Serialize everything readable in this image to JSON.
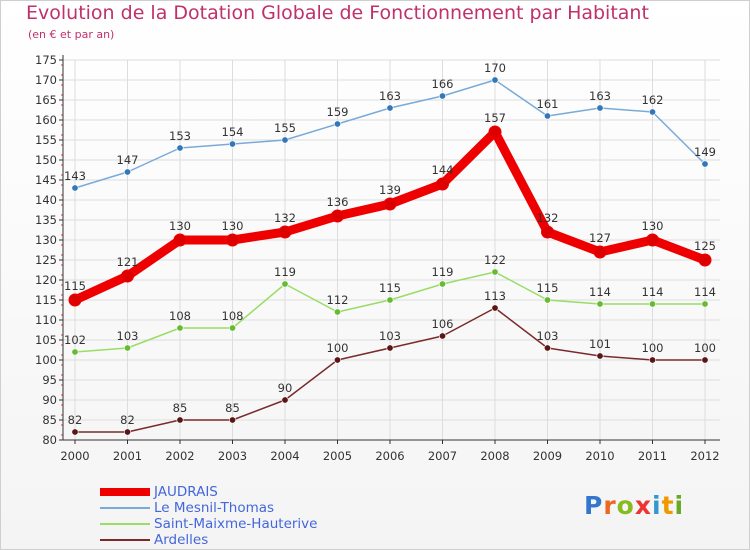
{
  "title": "Evolution de la Dotation Globale de Fonctionnement par Habitant",
  "subtitle": "(en € et par an)",
  "logo_letters": [
    "P",
    "r",
    "o",
    "x",
    "i",
    "t",
    "i"
  ],
  "colors": {
    "title": "#c0306a",
    "axis": "#333333",
    "grid": "#dddddd",
    "legend_text": "#4466dd",
    "logo": [
      "#3377cc",
      "#ee6622",
      "#88bb22",
      "#ee3333",
      "#3399cc",
      "#ee9900",
      "#66aa22"
    ]
  },
  "chart_data": {
    "type": "line",
    "title": "Evolution de la Dotation Globale de Fonctionnement par Habitant",
    "subtitle": "(en € et par an)",
    "categories": [
      "2000",
      "2001",
      "2002",
      "2003",
      "2004",
      "2005",
      "2006",
      "2007",
      "2008",
      "2009",
      "2010",
      "2011",
      "2012"
    ],
    "ylim": [
      80,
      175
    ],
    "yticks": [
      80,
      85,
      90,
      95,
      100,
      105,
      110,
      115,
      120,
      125,
      130,
      135,
      140,
      145,
      150,
      155,
      160,
      165,
      170,
      175
    ],
    "grid": true,
    "legend_position": "bottom-left",
    "series": [
      {
        "name": "JAUDRAIS",
        "color": "#ee0000",
        "marker": "#dd0000",
        "thick": true,
        "values": [
          115,
          121,
          130,
          130,
          132,
          136,
          139,
          144,
          157,
          132,
          127,
          130,
          125
        ]
      },
      {
        "name": "Le Mesnil-Thomas",
        "color": "#7aaad8",
        "marker": "#3377bb",
        "thick": false,
        "values": [
          143,
          147,
          153,
          154,
          155,
          159,
          163,
          166,
          170,
          161,
          163,
          162,
          149
        ]
      },
      {
        "name": "Saint-Maixme-Hauterive",
        "color": "#99dd66",
        "marker": "#66bb33",
        "thick": false,
        "values": [
          102,
          103,
          108,
          108,
          119,
          112,
          115,
          119,
          122,
          115,
          114,
          114,
          114
        ]
      },
      {
        "name": "Ardelles",
        "color": "#7a2a2a",
        "marker": "#5a1515",
        "thick": false,
        "values": [
          82,
          82,
          85,
          85,
          90,
          100,
          103,
          106,
          113,
          103,
          101,
          100,
          100
        ]
      }
    ]
  }
}
